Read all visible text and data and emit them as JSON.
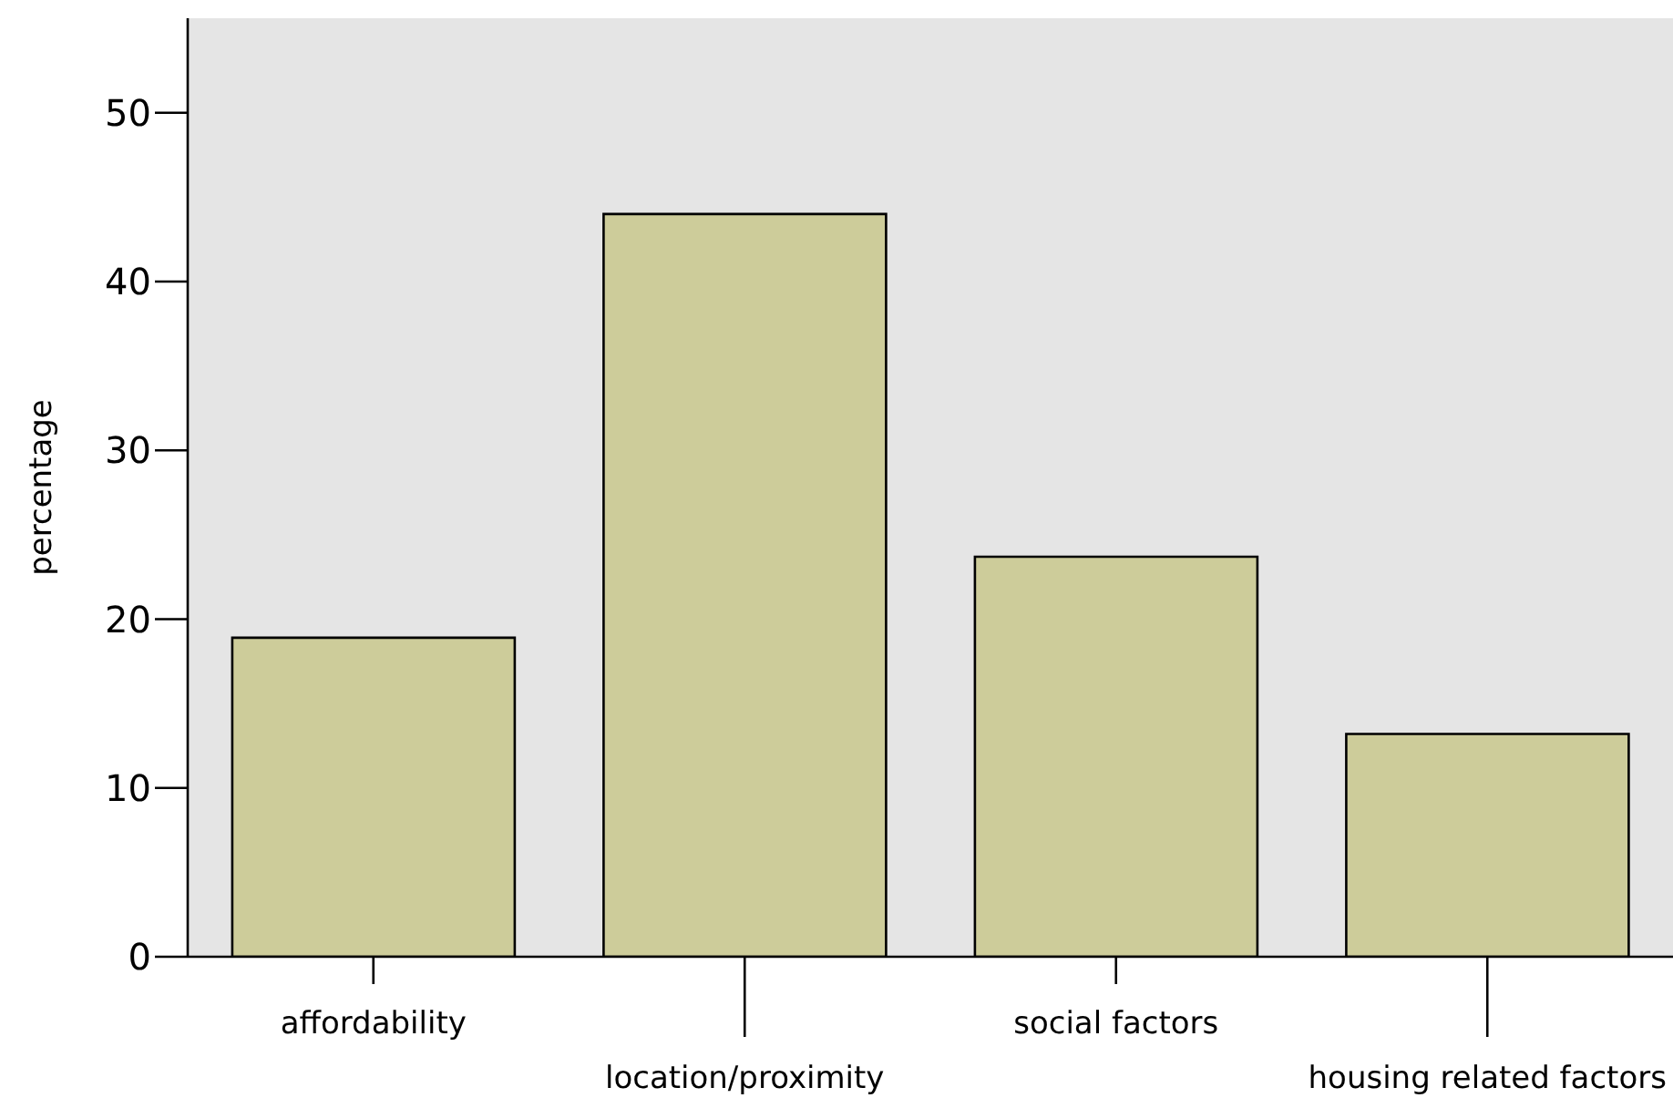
{
  "chart_data": {
    "type": "bar",
    "ylabel": "percentage",
    "categories": [
      "affordability",
      "location/proximity",
      "social factors",
      "housing related factors"
    ],
    "values": [
      18.9,
      44.0,
      23.7,
      13.2
    ],
    "color": "#cdcc9a",
    "ylim": [
      0,
      55.6
    ],
    "yticks": [
      0,
      10,
      20,
      30,
      40,
      50
    ]
  }
}
